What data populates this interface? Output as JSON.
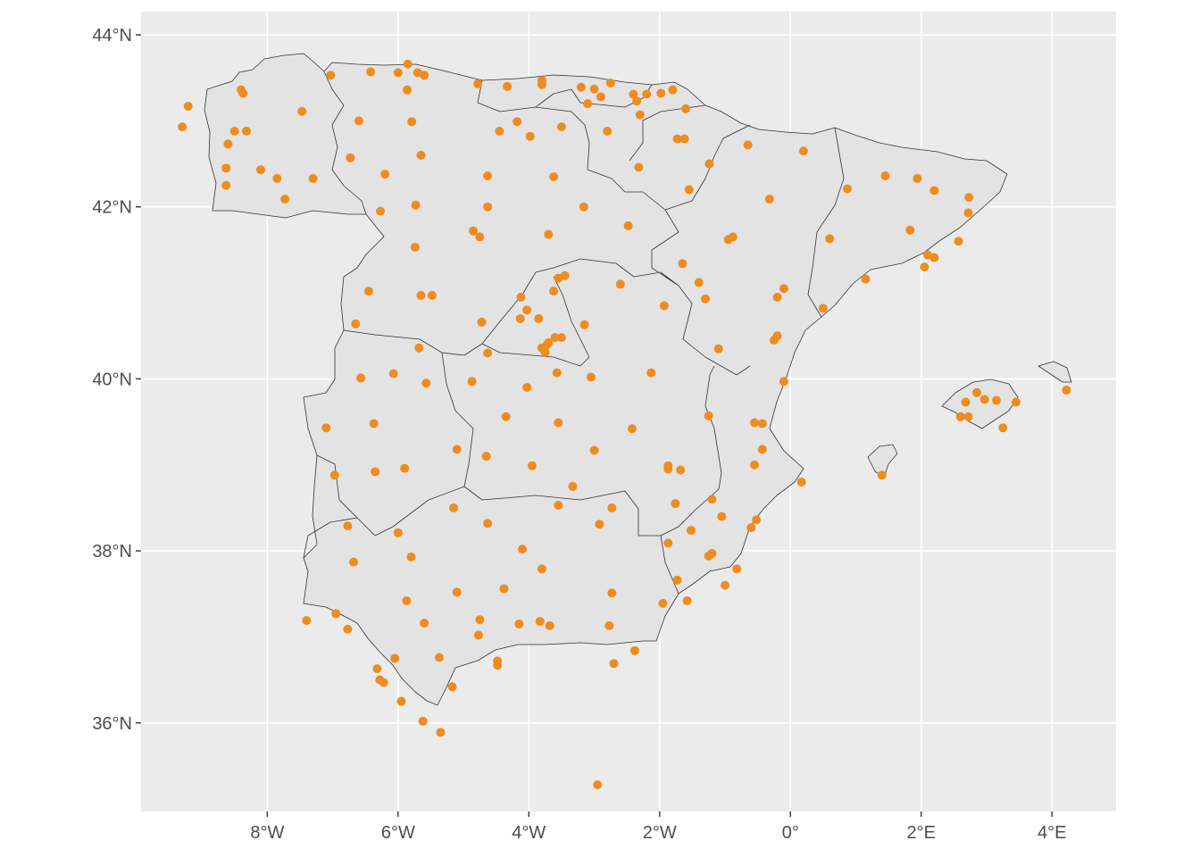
{
  "colors": {
    "panel_background": "#ebebeb",
    "land_fill": "#e3e3e3",
    "border": "#333333",
    "grid": "#ffffff",
    "point": "#ee8c1f",
    "tick_text": "#4d4d4d"
  },
  "axes": {
    "x_ticks": [
      {
        "lon": -8,
        "label": "8°W"
      },
      {
        "lon": -6,
        "label": "6°W"
      },
      {
        "lon": -4,
        "label": "4°W"
      },
      {
        "lon": -2,
        "label": "2°W"
      },
      {
        "lon": 0,
        "label": "0°"
      },
      {
        "lon": 2,
        "label": "2°E"
      },
      {
        "lon": 4,
        "label": "4°E"
      }
    ],
    "y_ticks": [
      {
        "lat": 36,
        "label": "36°N"
      },
      {
        "lat": 38,
        "label": "38°N"
      },
      {
        "lat": 40,
        "label": "40°N"
      },
      {
        "lat": 42,
        "label": "42°N"
      },
      {
        "lat": 44,
        "label": "44°N"
      }
    ],
    "lon_range": [
      -9.93,
      4.98
    ],
    "lat_range": [
      34.97,
      44.27
    ]
  },
  "chart_data": {
    "type": "scatter",
    "title": "",
    "xlabel": "",
    "ylabel": "",
    "grid": true,
    "legend": "none",
    "points": [
      [
        -9.3,
        42.93
      ],
      [
        -9.21,
        43.17
      ],
      [
        -8.6,
        42.73
      ],
      [
        -8.63,
        42.45
      ],
      [
        -8.63,
        42.25
      ],
      [
        -8.5,
        42.88
      ],
      [
        -8.4,
        43.36
      ],
      [
        -8.37,
        43.32
      ],
      [
        -8.32,
        42.88
      ],
      [
        -7.47,
        43.11
      ],
      [
        -7.03,
        43.53
      ],
      [
        -7.3,
        42.33
      ],
      [
        -7.85,
        42.33
      ],
      [
        -8.1,
        42.43
      ],
      [
        -7.73,
        42.09
      ],
      [
        -6.42,
        43.57
      ],
      [
        -6.0,
        43.56
      ],
      [
        -5.85,
        43.66
      ],
      [
        -5.7,
        43.56
      ],
      [
        -5.6,
        43.53
      ],
      [
        -5.86,
        43.36
      ],
      [
        -4.78,
        43.43
      ],
      [
        -4.33,
        43.4
      ],
      [
        -3.8,
        43.47
      ],
      [
        -3.8,
        43.42
      ],
      [
        -3.2,
        43.39
      ],
      [
        -3.0,
        43.37
      ],
      [
        -2.9,
        43.28
      ],
      [
        -2.75,
        43.44
      ],
      [
        -3.1,
        43.2
      ],
      [
        -2.35,
        43.23
      ],
      [
        -2.4,
        43.31
      ],
      [
        -2.2,
        43.31
      ],
      [
        -1.98,
        43.32
      ],
      [
        -1.8,
        43.36
      ],
      [
        -2.3,
        43.07
      ],
      [
        -2.8,
        42.88
      ],
      [
        -3.5,
        42.93
      ],
      [
        -4.45,
        42.88
      ],
      [
        -4.18,
        42.99
      ],
      [
        -3.98,
        42.82
      ],
      [
        -1.6,
        43.14
      ],
      [
        -1.73,
        42.79
      ],
      [
        -1.62,
        42.79
      ],
      [
        -2.32,
        42.46
      ],
      [
        -5.79,
        42.99
      ],
      [
        -6.6,
        43.0
      ],
      [
        -6.73,
        42.57
      ],
      [
        -6.2,
        42.38
      ],
      [
        -5.65,
        42.6
      ],
      [
        -4.63,
        42.36
      ],
      [
        -3.62,
        42.35
      ],
      [
        -3.16,
        42.0
      ],
      [
        -2.48,
        41.78
      ],
      [
        -1.55,
        42.2
      ],
      [
        -1.24,
        42.5
      ],
      [
        -0.65,
        42.72
      ],
      [
        0.2,
        42.65
      ],
      [
        -0.32,
        42.09
      ],
      [
        0.87,
        42.21
      ],
      [
        1.45,
        42.36
      ],
      [
        1.94,
        42.33
      ],
      [
        2.2,
        42.19
      ],
      [
        2.73,
        42.11
      ],
      [
        2.72,
        41.93
      ],
      [
        1.83,
        41.73
      ],
      [
        2.57,
        41.6
      ],
      [
        2.1,
        41.44
      ],
      [
        2.2,
        41.41
      ],
      [
        2.05,
        41.3
      ],
      [
        1.15,
        41.16
      ],
      [
        0.6,
        41.63
      ],
      [
        -0.88,
        41.65
      ],
      [
        -0.95,
        41.62
      ],
      [
        -0.1,
        41.05
      ],
      [
        -0.2,
        40.95
      ],
      [
        0.5,
        40.82
      ],
      [
        -0.2,
        40.5
      ],
      [
        -0.25,
        40.45
      ],
      [
        -1.65,
        41.34
      ],
      [
        -1.4,
        41.12
      ],
      [
        -1.3,
        40.93
      ],
      [
        -1.1,
        40.35
      ],
      [
        -0.1,
        39.97
      ],
      [
        -6.27,
        41.95
      ],
      [
        -5.73,
        42.02
      ],
      [
        -5.74,
        41.53
      ],
      [
        -4.85,
        41.72
      ],
      [
        -4.75,
        41.65
      ],
      [
        -4.63,
        42.0
      ],
      [
        -3.7,
        41.68
      ],
      [
        -3.55,
        41.17
      ],
      [
        -3.62,
        41.02
      ],
      [
        -3.45,
        41.2
      ],
      [
        -4.12,
        40.95
      ],
      [
        -4.03,
        40.8
      ],
      [
        -4.72,
        40.66
      ],
      [
        -3.15,
        40.63
      ],
      [
        -2.6,
        41.1
      ],
      [
        -1.93,
        40.85
      ],
      [
        -6.45,
        41.02
      ],
      [
        -6.65,
        40.64
      ],
      [
        -5.65,
        40.97
      ],
      [
        -5.48,
        40.97
      ],
      [
        -5.68,
        40.36
      ],
      [
        -4.63,
        40.3
      ],
      [
        -4.13,
        40.7
      ],
      [
        -3.85,
        40.7
      ],
      [
        -3.8,
        40.36
      ],
      [
        -3.75,
        40.31
      ],
      [
        -3.72,
        40.4
      ],
      [
        -3.6,
        40.48
      ],
      [
        -3.5,
        40.48
      ],
      [
        -3.7,
        40.42
      ],
      [
        -3.57,
        40.07
      ],
      [
        -3.05,
        40.02
      ],
      [
        -2.13,
        40.07
      ],
      [
        -6.57,
        40.01
      ],
      [
        -6.07,
        40.06
      ],
      [
        -5.57,
        39.95
      ],
      [
        -4.87,
        39.97
      ],
      [
        -4.03,
        39.9
      ],
      [
        -6.37,
        39.48
      ],
      [
        -7.1,
        39.43
      ],
      [
        -6.97,
        38.88
      ],
      [
        -6.35,
        38.92
      ],
      [
        -5.9,
        38.96
      ],
      [
        -5.1,
        39.18
      ],
      [
        -4.65,
        39.1
      ],
      [
        -4.35,
        39.56
      ],
      [
        -3.55,
        39.49
      ],
      [
        -2.42,
        39.42
      ],
      [
        -3.0,
        39.17
      ],
      [
        -3.95,
        38.99
      ],
      [
        -3.33,
        38.75
      ],
      [
        -2.73,
        38.5
      ],
      [
        -3.55,
        38.53
      ],
      [
        -1.87,
        38.99
      ],
      [
        -1.87,
        38.95
      ],
      [
        -1.68,
        38.94
      ],
      [
        -1.25,
        39.57
      ],
      [
        -0.55,
        39.49
      ],
      [
        -0.43,
        39.48
      ],
      [
        -0.43,
        39.18
      ],
      [
        -0.55,
        39.0
      ],
      [
        0.17,
        38.8
      ],
      [
        -1.2,
        38.6
      ],
      [
        -1.05,
        38.4
      ],
      [
        -0.52,
        38.36
      ],
      [
        -0.6,
        38.27
      ],
      [
        -0.82,
        37.79
      ],
      [
        -1.0,
        37.6
      ],
      [
        -1.2,
        37.97
      ],
      [
        -1.25,
        37.94
      ],
      [
        -1.52,
        38.24
      ],
      [
        -1.87,
        38.09
      ],
      [
        -1.73,
        37.66
      ],
      [
        -1.58,
        37.42
      ],
      [
        -1.95,
        37.39
      ],
      [
        -1.76,
        38.55
      ],
      [
        -5.15,
        38.5
      ],
      [
        -4.63,
        38.32
      ],
      [
        -6.77,
        38.29
      ],
      [
        -6.0,
        38.21
      ],
      [
        -5.8,
        37.93
      ],
      [
        -6.68,
        37.87
      ],
      [
        -4.1,
        38.02
      ],
      [
        -3.8,
        37.79
      ],
      [
        -5.1,
        37.52
      ],
      [
        -4.38,
        37.56
      ],
      [
        -2.73,
        37.51
      ],
      [
        -2.92,
        38.31
      ],
      [
        -5.87,
        37.42
      ],
      [
        -5.6,
        37.16
      ],
      [
        -6.95,
        37.27
      ],
      [
        -6.77,
        37.09
      ],
      [
        -7.4,
        37.19
      ],
      [
        -4.75,
        37.2
      ],
      [
        -4.77,
        37.02
      ],
      [
        -4.15,
        37.15
      ],
      [
        -3.83,
        37.18
      ],
      [
        -3.68,
        37.13
      ],
      [
        -2.77,
        37.13
      ],
      [
        -2.7,
        36.69
      ],
      [
        -2.38,
        36.84
      ],
      [
        -4.48,
        36.72
      ],
      [
        -4.48,
        36.67
      ],
      [
        -5.37,
        36.76
      ],
      [
        -5.17,
        36.42
      ],
      [
        -6.05,
        36.75
      ],
      [
        -6.32,
        36.63
      ],
      [
        -6.28,
        36.5
      ],
      [
        -6.22,
        36.47
      ],
      [
        -5.95,
        36.25
      ],
      [
        -5.62,
        36.02
      ],
      [
        -5.35,
        35.89
      ],
      [
        -2.95,
        35.28
      ],
      [
        2.68,
        39.73
      ],
      [
        2.85,
        39.84
      ],
      [
        2.97,
        39.76
      ],
      [
        3.15,
        39.75
      ],
      [
        3.45,
        39.73
      ],
      [
        2.72,
        39.56
      ],
      [
        2.6,
        39.56
      ],
      [
        3.25,
        39.43
      ],
      [
        4.22,
        39.87
      ],
      [
        1.4,
        38.88
      ]
    ]
  }
}
